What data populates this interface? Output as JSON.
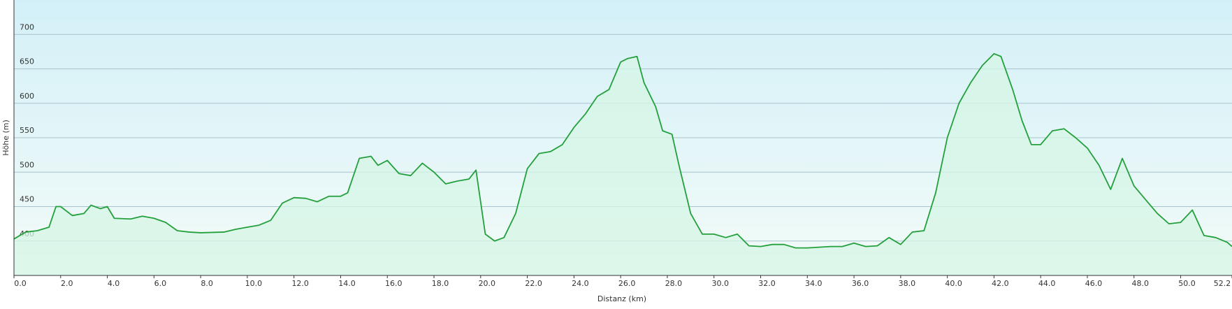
{
  "chart_data": {
    "type": "area",
    "x_label": "Distanz  (km)",
    "y_label": "Höhe (m)",
    "color": "#23a03c",
    "fill": "#d6f5e6",
    "grid": true,
    "xlim": [
      0,
      52.2
    ],
    "ylim": [
      350,
      750
    ],
    "xticks": [
      {
        "value": 0,
        "label": "0.0"
      },
      {
        "value": 2,
        "label": "2.0"
      },
      {
        "value": 4,
        "label": "4.0"
      },
      {
        "value": 6,
        "label": "6.0"
      },
      {
        "value": 8,
        "label": "8.0"
      },
      {
        "value": 10,
        "label": "10.0"
      },
      {
        "value": 12,
        "label": "12.0"
      },
      {
        "value": 14,
        "label": "14.0"
      },
      {
        "value": 16,
        "label": "16.0"
      },
      {
        "value": 18,
        "label": "18.0"
      },
      {
        "value": 20,
        "label": "20.0"
      },
      {
        "value": 22,
        "label": "22.0"
      },
      {
        "value": 24,
        "label": "24.0"
      },
      {
        "value": 26,
        "label": "26.0"
      },
      {
        "value": 28,
        "label": "28.0"
      },
      {
        "value": 30,
        "label": "30.0"
      },
      {
        "value": 32,
        "label": "32.0"
      },
      {
        "value": 34,
        "label": "34.0"
      },
      {
        "value": 36,
        "label": "36.0"
      },
      {
        "value": 38,
        "label": "38.0"
      },
      {
        "value": 40,
        "label": "40.0"
      },
      {
        "value": 42,
        "label": "42.0"
      },
      {
        "value": 44,
        "label": "44.0"
      },
      {
        "value": 46,
        "label": "46.0"
      },
      {
        "value": 48,
        "label": "48.0"
      },
      {
        "value": 50,
        "label": "50.0"
      },
      {
        "value": 52.2,
        "label": "52.2"
      }
    ],
    "yticks": [
      400,
      450,
      500,
      550,
      600,
      650,
      700
    ],
    "x": [
      0,
      0.5,
      1.0,
      1.5,
      1.8,
      2.0,
      2.5,
      3.0,
      3.3,
      3.7,
      4.0,
      4.3,
      5.0,
      5.5,
      6.0,
      6.5,
      7.0,
      7.5,
      8.0,
      9.0,
      9.5,
      10.0,
      10.5,
      11.0,
      11.5,
      12.0,
      12.5,
      13.0,
      13.5,
      14.0,
      14.3,
      14.8,
      15.3,
      15.6,
      16.0,
      16.5,
      17.0,
      17.5,
      18.0,
      18.5,
      19.0,
      19.5,
      19.8,
      20.2,
      20.6,
      21.0,
      21.5,
      22.0,
      22.5,
      23.0,
      23.5,
      24.0,
      24.5,
      25.0,
      25.5,
      26.0,
      26.3,
      26.7,
      27.0,
      27.5,
      27.8,
      28.2,
      28.5,
      29.0,
      29.5,
      30.0,
      30.5,
      31.0,
      31.5,
      32.0,
      32.5,
      33.0,
      33.5,
      34.0,
      35.0,
      35.5,
      36.0,
      36.5,
      37.0,
      37.5,
      38.0,
      38.5,
      39.0,
      39.5,
      40.0,
      40.5,
      41.0,
      41.5,
      42.0,
      42.3,
      42.8,
      43.2,
      43.6,
      44.0,
      44.5,
      45.0,
      45.5,
      46.0,
      46.5,
      47.0,
      47.5,
      48.0,
      48.5,
      49.0,
      49.5,
      50.0,
      50.5,
      51.0,
      51.5,
      52.0,
      52.2
    ],
    "values": [
      403,
      413,
      415,
      420,
      450,
      450,
      437,
      440,
      452,
      447,
      450,
      433,
      432,
      436,
      433,
      427,
      415,
      413,
      412,
      413,
      417,
      420,
      423,
      430,
      455,
      463,
      462,
      457,
      465,
      465,
      470,
      520,
      523,
      510,
      517,
      498,
      495,
      513,
      500,
      483,
      487,
      490,
      503,
      410,
      400,
      405,
      440,
      505,
      527,
      530,
      540,
      565,
      585,
      610,
      620,
      660,
      665,
      668,
      630,
      595,
      560,
      555,
      510,
      440,
      410,
      410,
      405,
      410,
      393,
      392,
      395,
      395,
      390,
      390,
      392,
      392,
      397,
      392,
      393,
      405,
      395,
      413,
      415,
      470,
      550,
      600,
      630,
      655,
      672,
      668,
      620,
      575,
      540,
      540,
      560,
      563,
      550,
      535,
      510,
      475,
      520,
      480,
      460,
      440,
      425,
      427,
      445,
      408,
      405,
      398,
      392
    ]
  }
}
